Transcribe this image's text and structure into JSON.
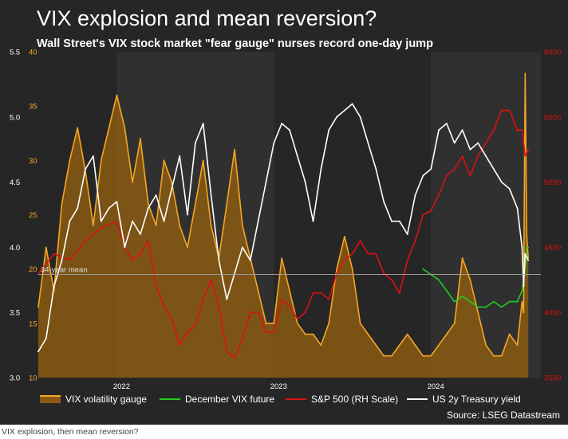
{
  "header": {
    "title": "VIX explosion and mean reversion?",
    "subtitle": "Wall Street's VIX stock market \"fear gauge\" nurses record one-day jump"
  },
  "source": "Source: LSEG Datastream",
  "caption": "VIX explosion, then mean reversion?",
  "colors": {
    "background": "#262626",
    "shade_band": "#303030",
    "vix": "#f5a623",
    "vix_fill": "#8a5a12",
    "december_future": "#22cc22",
    "sp500": "#dd1111",
    "us2y": "#ffffff",
    "mean_line": "#9a9a9a"
  },
  "chart_data": {
    "type": "line",
    "x_unit": "year",
    "xlim": [
      2021.5,
      2024.7
    ],
    "x_ticks": [
      {
        "x": 2022.0,
        "label": "2022"
      },
      {
        "x": 2023.0,
        "label": "2023"
      },
      {
        "x": 2024.0,
        "label": "2024"
      }
    ],
    "shaded_years": [
      [
        2022.0,
        2023.0
      ],
      [
        2024.0,
        2024.7
      ]
    ],
    "axes": {
      "us2y_axis": {
        "side": "outer-left",
        "ylim": [
          3.0,
          5.5
        ],
        "ticks": [
          "3.0",
          "3.5",
          "4.0",
          "4.5",
          "5.0",
          "5.5"
        ],
        "color": "#ffffff"
      },
      "vix_axis": {
        "side": "inner-left",
        "ylim": [
          10,
          40
        ],
        "ticks": [
          "10",
          "15",
          "20",
          "25",
          "30",
          "35",
          "40"
        ],
        "color": "#f5a623"
      },
      "sp500_axis": {
        "side": "right",
        "ylim": [
          3500,
          6000
        ],
        "ticks": [
          "3500",
          "4000",
          "4500",
          "5000",
          "5500",
          "6000"
        ],
        "color": "#dd1111"
      }
    },
    "annotations": [
      {
        "text": "34-year mean",
        "axis": "vix_axis",
        "y": 19.5
      }
    ],
    "series": [
      {
        "name": "VIX volatility gauge",
        "axis": "vix_axis",
        "style": "area",
        "x": [
          2021.5,
          2021.55,
          2021.6,
          2021.65,
          2021.7,
          2021.75,
          2021.8,
          2021.85,
          2021.9,
          2021.95,
          2022.0,
          2022.05,
          2022.1,
          2022.15,
          2022.2,
          2022.25,
          2022.3,
          2022.35,
          2022.4,
          2022.45,
          2022.5,
          2022.55,
          2022.6,
          2022.65,
          2022.7,
          2022.75,
          2022.8,
          2022.85,
          2022.9,
          2022.95,
          2023.0,
          2023.05,
          2023.1,
          2023.15,
          2023.2,
          2023.25,
          2023.3,
          2023.35,
          2023.4,
          2023.45,
          2023.5,
          2023.55,
          2023.6,
          2023.65,
          2023.7,
          2023.75,
          2023.8,
          2023.85,
          2023.9,
          2023.95,
          2024.0,
          2024.05,
          2024.1,
          2024.15,
          2024.2,
          2024.25,
          2024.3,
          2024.35,
          2024.4,
          2024.45,
          2024.5,
          2024.55,
          2024.58,
          2024.59,
          2024.6,
          2024.61,
          2024.62
        ],
        "values": [
          16.5,
          22,
          18,
          26,
          30,
          33,
          29,
          24,
          30,
          33,
          36,
          33,
          28,
          32,
          26,
          24,
          30,
          28,
          24,
          22,
          26,
          30,
          24,
          21,
          26,
          31,
          24,
          21,
          18,
          15,
          15,
          21,
          18,
          15,
          14,
          14,
          13,
          15,
          20,
          23,
          20,
          15,
          14,
          13,
          12,
          12,
          13,
          14,
          13,
          12,
          12,
          13,
          14,
          15,
          21,
          19,
          16,
          13,
          12,
          12,
          14,
          13,
          17,
          16,
          38,
          23,
          21
        ]
      },
      {
        "name": "December VIX future",
        "axis": "vix_axis",
        "style": "line",
        "x": [
          2023.95,
          2024.0,
          2024.05,
          2024.1,
          2024.15,
          2024.2,
          2024.25,
          2024.3,
          2024.35,
          2024.4,
          2024.45,
          2024.5,
          2024.55,
          2024.58,
          2024.6,
          2024.61,
          2024.62
        ],
        "values": [
          20,
          19.5,
          19,
          18,
          17,
          17.5,
          17,
          16.5,
          16.5,
          17,
          16.5,
          17,
          17,
          18,
          20,
          22,
          22
        ]
      },
      {
        "name": "S&P 500 (RH Scale)",
        "axis": "sp500_axis",
        "style": "line",
        "x": [
          2021.5,
          2021.6,
          2021.7,
          2021.8,
          2021.9,
          2022.0,
          2022.05,
          2022.1,
          2022.15,
          2022.2,
          2022.25,
          2022.3,
          2022.35,
          2022.4,
          2022.45,
          2022.5,
          2022.55,
          2022.6,
          2022.65,
          2022.7,
          2022.75,
          2022.8,
          2022.85,
          2022.9,
          2022.95,
          2023.0,
          2023.05,
          2023.1,
          2023.15,
          2023.2,
          2023.25,
          2023.3,
          2023.35,
          2023.4,
          2023.45,
          2023.5,
          2023.55,
          2023.6,
          2023.65,
          2023.7,
          2023.75,
          2023.8,
          2023.85,
          2023.9,
          2023.95,
          2024.0,
          2024.05,
          2024.1,
          2024.15,
          2024.2,
          2024.25,
          2024.3,
          2024.35,
          2024.4,
          2024.45,
          2024.5,
          2024.55,
          2024.58,
          2024.6,
          2024.62
        ],
        "values": [
          4300,
          4450,
          4400,
          4550,
          4650,
          4700,
          4500,
          4400,
          4450,
          4550,
          4200,
          4050,
          3950,
          3750,
          3850,
          3900,
          4100,
          4250,
          4050,
          3700,
          3650,
          3800,
          4000,
          4000,
          3850,
          3850,
          4100,
          4050,
          3950,
          4000,
          4150,
          4150,
          4100,
          4300,
          4400,
          4450,
          4550,
          4450,
          4450,
          4300,
          4250,
          4150,
          4400,
          4550,
          4750,
          4780,
          4900,
          5050,
          5100,
          5200,
          5050,
          5200,
          5300,
          5400,
          5550,
          5550,
          5400,
          5400,
          5200,
          5250
        ]
      },
      {
        "name": "US 2y Treasury yield",
        "axis": "us2y_axis",
        "style": "line",
        "x": [
          2021.5,
          2021.55,
          2021.6,
          2021.65,
          2021.7,
          2021.75,
          2021.8,
          2021.85,
          2021.9,
          2021.95,
          2022.0,
          2022.05,
          2022.1,
          2022.15,
          2022.2,
          2022.25,
          2022.3,
          2022.35,
          2022.4,
          2022.45,
          2022.5,
          2022.55,
          2022.6,
          2022.65,
          2022.7,
          2022.75,
          2022.8,
          2022.85,
          2022.9,
          2022.95,
          2023.0,
          2023.05,
          2023.1,
          2023.15,
          2023.2,
          2023.25,
          2023.3,
          2023.35,
          2023.4,
          2023.45,
          2023.5,
          2023.55,
          2023.6,
          2023.65,
          2023.7,
          2023.75,
          2023.8,
          2023.85,
          2023.9,
          2023.95,
          2024.0,
          2024.05,
          2024.1,
          2024.15,
          2024.2,
          2024.25,
          2024.3,
          2024.35,
          2024.4,
          2024.45,
          2024.5,
          2024.55,
          2024.58,
          2024.59,
          2024.6,
          2024.62
        ],
        "values": [
          3.2,
          3.3,
          3.7,
          3.9,
          4.2,
          4.3,
          4.6,
          4.7,
          4.2,
          4.3,
          4.35,
          4.0,
          4.2,
          4.1,
          4.3,
          4.4,
          4.2,
          4.45,
          4.7,
          4.25,
          4.8,
          4.95,
          4.4,
          3.9,
          3.6,
          3.8,
          4.0,
          3.9,
          4.2,
          4.5,
          4.8,
          4.95,
          4.9,
          4.7,
          4.5,
          4.2,
          4.6,
          4.9,
          5.0,
          5.05,
          5.1,
          5.0,
          4.8,
          4.6,
          4.35,
          4.2,
          4.2,
          4.1,
          4.4,
          4.55,
          4.6,
          4.9,
          4.95,
          4.8,
          4.9,
          4.75,
          4.8,
          4.7,
          4.6,
          4.5,
          4.45,
          4.3,
          4.0,
          3.7,
          3.95,
          3.9
        ]
      }
    ]
  }
}
